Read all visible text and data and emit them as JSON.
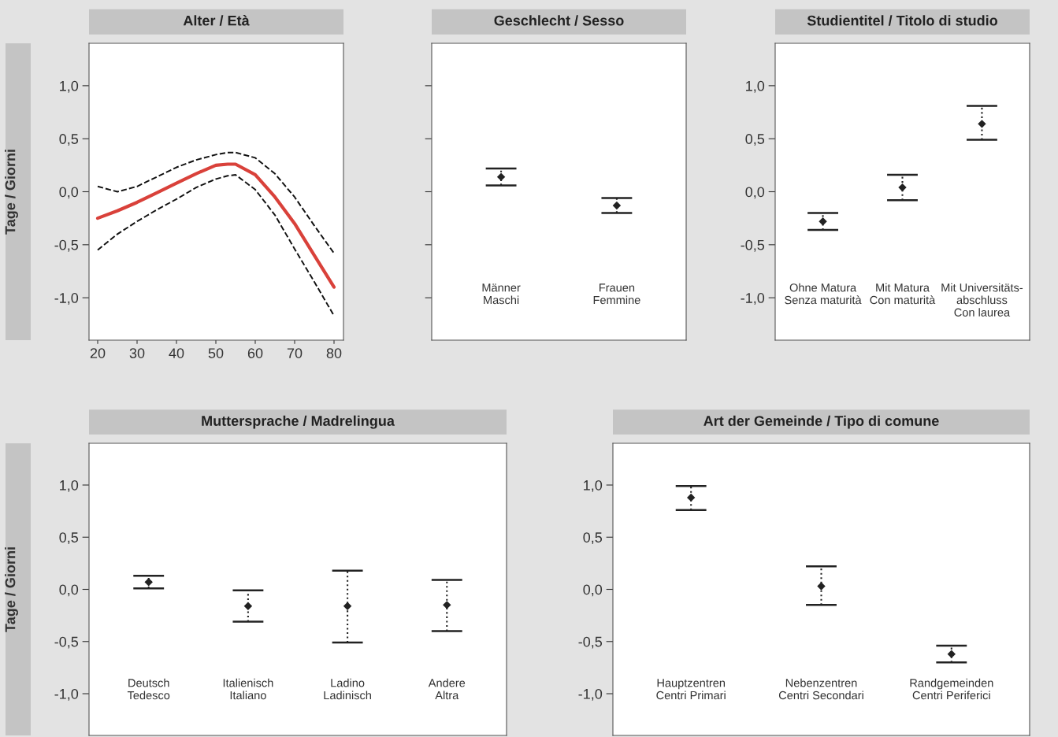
{
  "chart_data": [
    {
      "type": "line",
      "title": "Alter / Età",
      "ylabel": "Tage / Giorni",
      "x": [
        20,
        25,
        30,
        35,
        40,
        45,
        50,
        53,
        55,
        60,
        65,
        70,
        75,
        80
      ],
      "xlim": [
        17.8,
        82.4
      ],
      "xticks": [
        20,
        30,
        40,
        50,
        60,
        70,
        80
      ],
      "ylim": [
        -1.4,
        1.4
      ],
      "yticks": [
        {
          "value": -1.0,
          "label": "-1,0"
        },
        {
          "value": -0.5,
          "label": "-0,5"
        },
        {
          "value": 0.0,
          "label": "0,0"
        },
        {
          "value": 0.5,
          "label": "0,5"
        },
        {
          "value": 1.0,
          "label": "1,0"
        }
      ],
      "series": [
        {
          "color": "#d9413a",
          "line_style": "solid",
          "values": [
            -0.25,
            -0.18,
            -0.1,
            -0.01,
            0.08,
            0.17,
            0.25,
            0.26,
            0.26,
            0.16,
            -0.05,
            -0.3,
            -0.6,
            -0.9
          ]
        },
        {
          "color": "#111111",
          "line_style": "dashed",
          "values": [
            -0.55,
            -0.4,
            -0.28,
            -0.17,
            -0.07,
            0.04,
            0.12,
            0.15,
            0.16,
            0.02,
            -0.22,
            -0.54,
            -0.85,
            -1.17
          ]
        },
        {
          "color": "#111111",
          "line_style": "dashed",
          "values": [
            0.05,
            0.0,
            0.05,
            0.14,
            0.23,
            0.3,
            0.35,
            0.37,
            0.37,
            0.32,
            0.17,
            -0.05,
            -0.32,
            -0.58
          ]
        }
      ]
    },
    {
      "type": "scatter",
      "title": "Geschlecht / Sesso",
      "categories": [
        "Männer\nMaschi",
        "Frauen\nFemmine"
      ],
      "ylim": [
        -1.4,
        1.4
      ],
      "yticks": [
        {
          "value": -1.0,
          "label": null
        },
        {
          "value": -0.5,
          "label": null
        },
        {
          "value": 0.0,
          "label": null
        },
        {
          "value": 0.5,
          "label": null
        },
        {
          "value": 1.0,
          "label": null
        }
      ],
      "tick_labels": "x",
      "series": [
        {
          "color": "#222222",
          "values": [
            0.14,
            -0.13
          ],
          "errors": [
            [
              0.06,
              0.22
            ],
            [
              -0.2,
              -0.06
            ]
          ]
        }
      ]
    },
    {
      "type": "scatter",
      "title": "Studientitel / Titolo di studio",
      "categories": [
        "Ohne Matura\nSenza maturità",
        "Mit Matura\nCon maturità",
        "Mit Universitäts-\nabschluss\nCon laurea"
      ],
      "ylim": [
        -1.4,
        1.4
      ],
      "yticks": [
        {
          "value": -1.0,
          "label": "-1,0"
        },
        {
          "value": -0.5,
          "label": "-0,5"
        },
        {
          "value": 0.0,
          "label": "0,0"
        },
        {
          "value": 0.5,
          "label": "0,5"
        },
        {
          "value": 1.0,
          "label": "1,0"
        }
      ],
      "series": [
        {
          "color": "#222222",
          "values": [
            -0.28,
            0.04,
            0.64
          ],
          "errors": [
            [
              -0.36,
              -0.2
            ],
            [
              -0.08,
              0.16
            ],
            [
              0.49,
              0.81
            ]
          ]
        }
      ]
    },
    {
      "type": "scatter",
      "title": "Muttersprache / Madrelingua",
      "ylabel": "Tage / Giorni",
      "categories": [
        "Deutsch\nTedesco",
        "Italienisch\nItaliano",
        "Ladino\nLadinisch",
        "Andere\nAltra"
      ],
      "ylim": [
        -1.4,
        1.4
      ],
      "yticks": [
        {
          "value": -1.0,
          "label": "-1,0"
        },
        {
          "value": -0.5,
          "label": "-0,5"
        },
        {
          "value": 0.0,
          "label": "0,0"
        },
        {
          "value": 0.5,
          "label": "0,5"
        },
        {
          "value": 1.0,
          "label": "1,0"
        }
      ],
      "series": [
        {
          "color": "#222222",
          "values": [
            0.07,
            -0.16,
            -0.16,
            -0.15
          ],
          "errors": [
            [
              0.01,
              0.13
            ],
            [
              -0.31,
              -0.01
            ],
            [
              -0.51,
              0.18
            ],
            [
              -0.4,
              0.09
            ]
          ]
        }
      ]
    },
    {
      "type": "scatter",
      "title": "Art der Gemeinde / Tipo di comune",
      "categories": [
        "Hauptzentren\nCentri Primari",
        "Nebenzentren\nCentri Secondari",
        "Randgemeinden\nCentri Periferici"
      ],
      "ylim": [
        -1.4,
        1.4
      ],
      "yticks": [
        {
          "value": -1.0,
          "label": "-1,0"
        },
        {
          "value": -0.5,
          "label": "-0,5"
        },
        {
          "value": 0.0,
          "label": "0,0"
        },
        {
          "value": 0.5,
          "label": "0,5"
        },
        {
          "value": 1.0,
          "label": "1,0"
        }
      ],
      "series": [
        {
          "color": "#222222",
          "values": [
            0.88,
            0.03,
            -0.62
          ],
          "errors": [
            [
              0.76,
              0.99
            ],
            [
              -0.15,
              0.22
            ],
            [
              -0.7,
              -0.54
            ]
          ]
        }
      ]
    }
  ]
}
